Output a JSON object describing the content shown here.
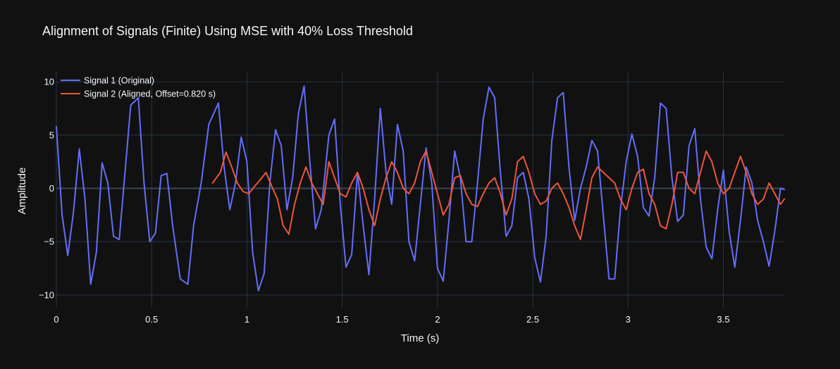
{
  "chart_data": {
    "type": "line",
    "title": "Alignment of Signals (Finite) Using MSE with 40% Loss Threshold",
    "xlabel": "Time (s)",
    "ylabel": "Amplitude",
    "xlim": [
      0,
      3.82
    ],
    "ylim": [
      -11.2,
      11.0
    ],
    "x_ticks": [
      0,
      0.5,
      1,
      1.5,
      2,
      2.5,
      3,
      3.5
    ],
    "x_tick_labels": [
      "0",
      "0.5",
      "1",
      "1.5",
      "2",
      "2.5",
      "3",
      "3.5"
    ],
    "y_ticks": [
      -10,
      -5,
      0,
      5,
      10
    ],
    "y_tick_labels": [
      "−10",
      "−5",
      "0",
      "5",
      "10"
    ],
    "grid": true,
    "legend_position": "top-left",
    "series": [
      {
        "name": "Signal 1 (Original)",
        "color": "#636efa",
        "x": [
          0,
          0.03,
          0.06,
          0.09,
          0.12,
          0.15,
          0.18,
          0.21,
          0.24,
          0.27,
          0.3,
          0.33,
          0.36,
          0.39,
          0.43,
          0.46,
          0.49,
          0.52,
          0.55,
          0.58,
          0.61,
          0.65,
          0.69,
          0.72,
          0.76,
          0.8,
          0.85,
          0.88,
          0.91,
          0.94,
          0.97,
          1.0,
          1.03,
          1.06,
          1.09,
          1.12,
          1.15,
          1.18,
          1.21,
          1.24,
          1.27,
          1.3,
          1.33,
          1.36,
          1.39,
          1.43,
          1.46,
          1.49,
          1.52,
          1.55,
          1.58,
          1.61,
          1.64,
          1.67,
          1.7,
          1.73,
          1.76,
          1.79,
          1.82,
          1.85,
          1.88,
          1.91,
          1.94,
          1.97,
          2.0,
          2.03,
          2.06,
          2.09,
          2.12,
          2.15,
          2.18,
          2.21,
          2.24,
          2.27,
          2.3,
          2.33,
          2.36,
          2.39,
          2.42,
          2.45,
          2.48,
          2.51,
          2.54,
          2.57,
          2.6,
          2.63,
          2.66,
          2.69,
          2.72,
          2.75,
          2.78,
          2.81,
          2.84,
          2.87,
          2.9,
          2.93,
          2.96,
          2.99,
          3.02,
          3.05,
          3.08,
          3.11,
          3.14,
          3.17,
          3.2,
          3.23,
          3.26,
          3.29,
          3.32,
          3.35,
          3.38,
          3.41,
          3.44,
          3.47,
          3.5,
          3.53,
          3.56,
          3.59,
          3.62,
          3.65,
          3.68,
          3.71,
          3.74,
          3.77,
          3.8,
          3.82
        ],
        "y": [
          5.8,
          -2.5,
          -6.3,
          -2.2,
          3.7,
          -1.0,
          -9.0,
          -6.0,
          2.4,
          0.5,
          -4.5,
          -4.8,
          1.5,
          7.8,
          8.5,
          0.5,
          -5.0,
          -4.2,
          1.2,
          1.4,
          -3.5,
          -8.5,
          -9.0,
          -3.5,
          0.5,
          6.0,
          8.0,
          2.0,
          -2.0,
          0.5,
          4.8,
          2.5,
          -6.0,
          -9.6,
          -8.0,
          0.5,
          5.5,
          4.0,
          -2.0,
          1.0,
          7.0,
          9.6,
          2.5,
          -3.8,
          -2.0,
          5.0,
          6.5,
          -1.5,
          -7.4,
          -6.2,
          1.5,
          -3.5,
          -8.1,
          -1.0,
          7.5,
          1.5,
          -1.5,
          6.0,
          3.5,
          -5.0,
          -6.8,
          -1.5,
          3.8,
          0.5,
          -7.5,
          -8.7,
          -3.0,
          3.5,
          1.0,
          -5.0,
          -5.0,
          0.5,
          6.5,
          9.5,
          8.5,
          1.5,
          -4.5,
          -3.5,
          1.0,
          1.5,
          -1.0,
          -6.5,
          -8.8,
          -4.5,
          4.5,
          8.5,
          9.0,
          2.0,
          -3.0,
          0.0,
          2.0,
          4.5,
          3.5,
          -2.5,
          -8.5,
          -8.5,
          -2.0,
          2.5,
          5.1,
          3.0,
          -1.8,
          -2.6,
          1.0,
          8.0,
          7.5,
          1.0,
          -3.1,
          -2.5,
          4.0,
          5.6,
          -1.0,
          -5.5,
          -6.6,
          -2.0,
          1.7,
          -4.0,
          -7.4,
          -3.0,
          2.0,
          0.5,
          -3.0,
          -5.0,
          -7.3,
          -4.0,
          0.0,
          -0.1
        ]
      },
      {
        "name": "Signal 2 (Aligned, Offset=0.820 s)",
        "color": "#ef553b",
        "x": [
          0.82,
          0.86,
          0.89,
          0.92,
          0.95,
          0.98,
          1.01,
          1.04,
          1.07,
          1.1,
          1.13,
          1.16,
          1.19,
          1.22,
          1.25,
          1.28,
          1.31,
          1.34,
          1.37,
          1.4,
          1.43,
          1.46,
          1.49,
          1.52,
          1.55,
          1.58,
          1.61,
          1.64,
          1.67,
          1.7,
          1.73,
          1.76,
          1.79,
          1.82,
          1.85,
          1.88,
          1.91,
          1.94,
          1.97,
          2.0,
          2.03,
          2.06,
          2.09,
          2.12,
          2.15,
          2.18,
          2.21,
          2.24,
          2.27,
          2.3,
          2.33,
          2.36,
          2.39,
          2.42,
          2.45,
          2.48,
          2.51,
          2.54,
          2.57,
          2.6,
          2.63,
          2.66,
          2.69,
          2.72,
          2.75,
          2.78,
          2.81,
          2.84,
          2.87,
          2.9,
          2.93,
          2.96,
          2.99,
          3.02,
          3.05,
          3.08,
          3.11,
          3.14,
          3.17,
          3.2,
          3.23,
          3.26,
          3.29,
          3.32,
          3.35,
          3.38,
          3.41,
          3.44,
          3.47,
          3.5,
          3.53,
          3.56,
          3.59,
          3.62,
          3.65,
          3.68,
          3.71,
          3.74,
          3.77,
          3.8,
          3.82
        ],
        "y": [
          0.5,
          1.5,
          3.4,
          2.0,
          0.5,
          -0.3,
          -0.5,
          0.2,
          0.8,
          1.5,
          0.2,
          -1.0,
          -3.5,
          -4.3,
          -1.5,
          0.5,
          2.0,
          0.5,
          -0.5,
          -1.5,
          2.5,
          1.0,
          -0.5,
          -0.8,
          0.5,
          1.5,
          0.0,
          -2.0,
          -3.5,
          -1.0,
          1.0,
          2.5,
          1.5,
          0.0,
          -0.5,
          0.5,
          2.5,
          3.5,
          1.5,
          -0.5,
          -2.5,
          -1.5,
          1.0,
          1.2,
          -0.5,
          -1.5,
          -1.7,
          -0.5,
          0.5,
          1.0,
          -0.5,
          -2.5,
          -1.0,
          2.5,
          3.0,
          1.5,
          -0.5,
          -1.5,
          -1.2,
          0.0,
          0.5,
          -0.5,
          -1.8,
          -3.5,
          -4.8,
          -2.0,
          1.0,
          2.0,
          1.5,
          1.0,
          0.5,
          -1.0,
          -2.0,
          0.0,
          1.5,
          1.8,
          -0.5,
          -1.5,
          -3.5,
          -3.8,
          -1.5,
          1.5,
          1.5,
          0.0,
          -0.5,
          1.5,
          3.5,
          2.5,
          0.5,
          -0.5,
          0.0,
          1.5,
          3.0,
          1.5,
          -0.5,
          -1.5,
          -1.0,
          0.5,
          -0.5,
          -1.5,
          -1.0
        ]
      }
    ]
  }
}
